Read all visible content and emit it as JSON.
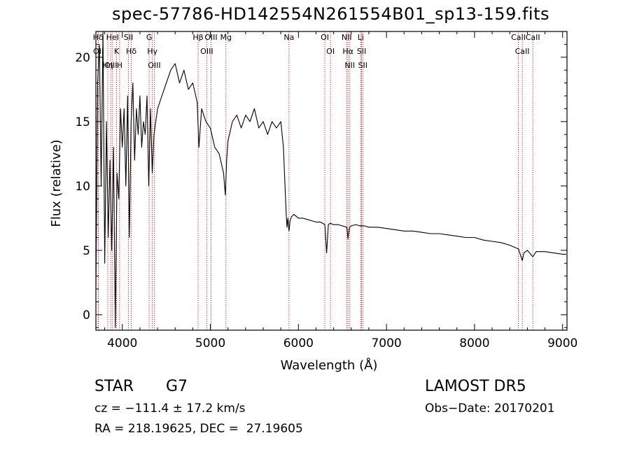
{
  "chart_data": {
    "type": "line",
    "title": "spec-57786-HD142554N261554B01_sp13-159.fits",
    "xlabel": "Wavelength (Å)",
    "ylabel": "Flux (relative)",
    "xlim": [
      3700,
      9050
    ],
    "ylim": [
      -1.2,
      22
    ],
    "xticks": [
      4000,
      5000,
      6000,
      7000,
      8000,
      9000
    ],
    "yticks": [
      0,
      5,
      10,
      15,
      20
    ],
    "grid": false,
    "series": [
      {
        "x": [
          3700,
          3720,
          3740,
          3760,
          3780,
          3800,
          3820,
          3840,
          3860,
          3880,
          3900,
          3920,
          3940,
          3960,
          3980,
          4000,
          4020,
          4040,
          4060,
          4080,
          4100,
          4120,
          4140,
          4160,
          4180,
          4200,
          4220,
          4240,
          4260,
          4280,
          4300,
          4320,
          4340,
          4360,
          4380,
          4400,
          4450,
          4500,
          4550,
          4600,
          4650,
          4700,
          4750,
          4800,
          4850,
          4870,
          4900,
          4950,
          5000,
          5050,
          5100,
          5150,
          5170,
          5185,
          5200,
          5250,
          5300,
          5350,
          5400,
          5450,
          5500,
          5550,
          5600,
          5650,
          5700,
          5750,
          5800,
          5830,
          5860,
          5870,
          5880,
          5893,
          5905,
          5920,
          5950,
          6000,
          6050,
          6100,
          6150,
          6200,
          6250,
          6300,
          6320,
          6340,
          6360,
          6400,
          6450,
          6500,
          6550,
          6563,
          6580,
          6600,
          6650,
          6700,
          6750,
          6800,
          6900,
          7000,
          7100,
          7200,
          7300,
          7400,
          7500,
          7600,
          7700,
          7800,
          7900,
          8000,
          8100,
          8200,
          8300,
          8400,
          8500,
          8542,
          8560,
          8600,
          8662,
          8700,
          8800,
          8900,
          9000,
          9040
        ],
        "values": [
          2,
          18,
          21,
          10,
          22,
          4,
          15,
          6,
          12,
          5,
          13,
          -1,
          11,
          9,
          16,
          13,
          16,
          10,
          17,
          6,
          15,
          18,
          12,
          16,
          14,
          17,
          13,
          15,
          14,
          17,
          10,
          16,
          11,
          14,
          15,
          16,
          17,
          18,
          19,
          19.5,
          18,
          19,
          17.5,
          18,
          16.5,
          13,
          16,
          15,
          14.5,
          13,
          12.5,
          11,
          9.3,
          12,
          13.5,
          15,
          15.5,
          14.5,
          15.5,
          15,
          16,
          14.5,
          15,
          14,
          15,
          14.5,
          15,
          13,
          8,
          6.8,
          7.5,
          6.5,
          7.3,
          7.6,
          7.8,
          7.5,
          7.5,
          7.4,
          7.3,
          7.2,
          7.2,
          7,
          4.8,
          7,
          7.1,
          7,
          7,
          6.9,
          6.8,
          5.9,
          6.8,
          6.9,
          7,
          6.9,
          6.9,
          6.8,
          6.8,
          6.7,
          6.6,
          6.5,
          6.5,
          6.4,
          6.3,
          6.3,
          6.2,
          6.1,
          6,
          6,
          5.8,
          5.7,
          5.6,
          5.4,
          5.1,
          4.2,
          4.8,
          5,
          4.5,
          4.9,
          4.9,
          4.8,
          4.7,
          4.7
        ]
      }
    ],
    "lines": [
      {
        "label": "Hδ",
        "x": 3726
      },
      {
        "label": "OII",
        "x": 3728
      },
      {
        "label": "Hη",
        "x": 3835
      },
      {
        "label": "OIII",
        "x": 3869
      },
      {
        "label": "HeI",
        "x": 3889
      },
      {
        "label": "K",
        "x": 3934
      },
      {
        "label": "H",
        "x": 3969
      },
      {
        "label": "SII",
        "x": 4070
      },
      {
        "label": "Hδ",
        "x": 4102
      },
      {
        "label": "G",
        "x": 4305
      },
      {
        "label": "Hγ",
        "x": 4341
      },
      {
        "label": "OIII",
        "x": 4363
      },
      {
        "label": "Hβ",
        "x": 4861
      },
      {
        "label": "OIII",
        "x": 4959
      },
      {
        "label": "OIII",
        "x": 5007
      },
      {
        "label": "Mg",
        "x": 5177
      },
      {
        "label": "Na",
        "x": 5893
      },
      {
        "label": "OI",
        "x": 6300
      },
      {
        "label": "OI",
        "x": 6364
      },
      {
        "label": "NII",
        "x": 6548
      },
      {
        "label": "Hα",
        "x": 6563
      },
      {
        "label": "NII",
        "x": 6584
      },
      {
        "label": "Li",
        "x": 6708
      },
      {
        "label": "SII",
        "x": 6717
      },
      {
        "label": "SII",
        "x": 6731
      },
      {
        "label": "CaII",
        "x": 8498
      },
      {
        "label": "CaII",
        "x": 8542
      },
      {
        "label": "CaII",
        "x": 8662
      }
    ]
  },
  "info": {
    "object_class": "STAR",
    "subclass": "G7",
    "survey": "LAMOST DR5",
    "velocity": "cz = −111.4 ± 17.2 km/s",
    "obs_date": "Obs−Date: 20170201",
    "coords": "RA = 218.19625, DEC =  27.19605"
  }
}
